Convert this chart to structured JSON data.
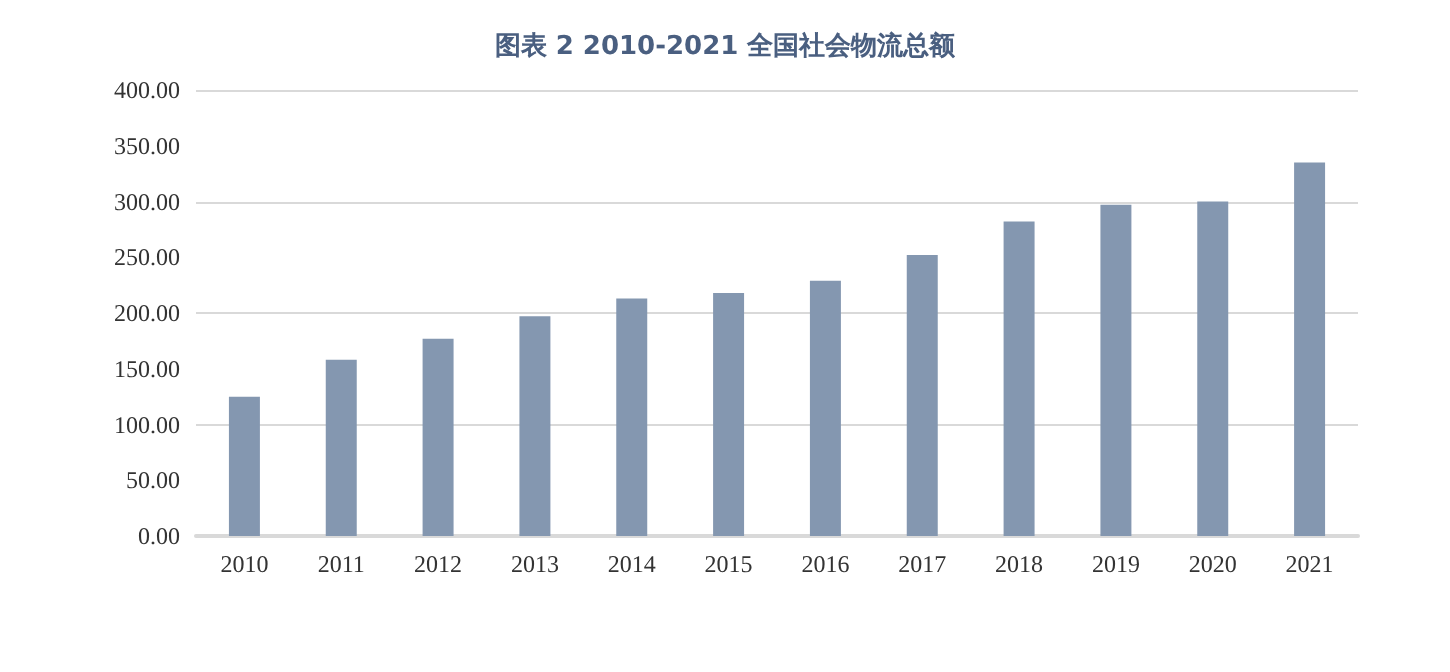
{
  "chart_data": {
    "type": "bar",
    "title": "图表 2 2010-2021 全国社会物流总额",
    "categories": [
      "2010",
      "2011",
      "2012",
      "2013",
      "2014",
      "2015",
      "2016",
      "2017",
      "2018",
      "2019",
      "2020",
      "2021"
    ],
    "values": [
      125,
      158,
      177,
      197,
      213,
      218,
      229,
      252,
      282,
      297,
      300,
      335
    ],
    "color": "#8497b0",
    "ylim": [
      0,
      400
    ],
    "yticks": [
      {
        "value": 0,
        "label": "0.00"
      },
      {
        "value": 50,
        "label": "50.00"
      },
      {
        "value": 100,
        "label": "100.00"
      },
      {
        "value": 150,
        "label": "150.00"
      },
      {
        "value": 200,
        "label": "200.00"
      },
      {
        "value": 250,
        "label": "250.00"
      },
      {
        "value": 300,
        "label": "300.00"
      },
      {
        "value": 350,
        "label": "350.00"
      },
      {
        "value": 400,
        "label": "400.00"
      }
    ],
    "grid": true
  }
}
